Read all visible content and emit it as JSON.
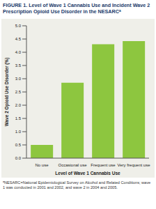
{
  "chart_data": {
    "type": "bar",
    "title": "FIGURE 1. Level of Wave 1 Cannabis Use and Incident Wave 2 Prescription Opioid Use Disorder in the NESARCᵃ",
    "x_label": "Level of Wave 1 Cannabis Use",
    "y_label": "Wave 2 Opioid Use Disorder (%)",
    "categories": [
      "No use",
      "Occasional use",
      "Frequent use",
      "Very frequent use"
    ],
    "values": [
      0.5,
      2.85,
      4.3,
      4.42
    ],
    "color": "#8dc63f",
    "ylim": [
      0,
      5
    ],
    "yticks": [
      {
        "value": 0,
        "label": "0.0"
      },
      0.5,
      {
        "value": 1,
        "label": "1.0"
      },
      1.5,
      {
        "value": 2,
        "label": "2.0"
      },
      2.5,
      {
        "value": 3,
        "label": "3.0"
      },
      3.5,
      {
        "value": 4,
        "label": "4.0"
      },
      4.5,
      {
        "value": 5,
        "label": "5.0"
      }
    ],
    "grid": false,
    "annotations": [
      "ᵃNESARC=National Epidemiological Survey on Alcohol and Related Conditions; wave 1 was conducted in 2001 and 2002, and wave 2 in 2004 and 2005."
    ]
  }
}
